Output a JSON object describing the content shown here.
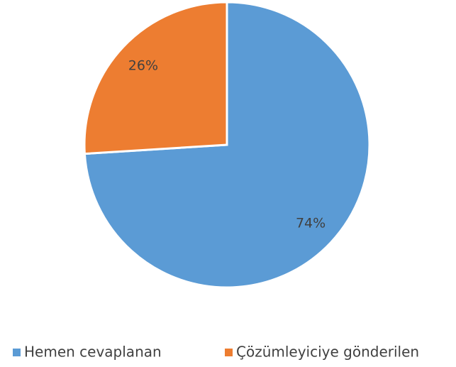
{
  "chart_data": {
    "type": "pie",
    "categories": [
      "Hemen cevaplanan",
      "Çözümleyiciye gönderilen"
    ],
    "values": [
      74,
      26
    ],
    "value_labels": [
      "74%",
      "26%"
    ],
    "colors": [
      "#5b9bd5",
      "#ed7d31"
    ],
    "legend": "bottom"
  }
}
